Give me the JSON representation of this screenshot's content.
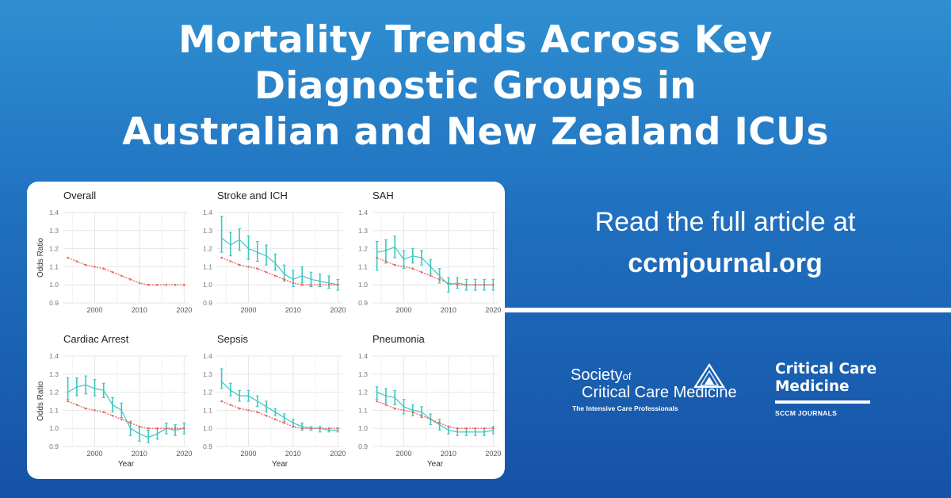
{
  "header": {
    "title_lines": [
      "Mortality Trends Across Key",
      "Diagnostic Groups in",
      "Australian and New Zealand ICUs"
    ]
  },
  "cta": {
    "line1": "Read the full article at",
    "line2": "ccmjournal.org"
  },
  "logos": {
    "sccm_society": "Society",
    "sccm_of": "of",
    "sccm_line2": "Critical Care Medicine",
    "sccm_tagline": "The Intensive Care Professionals",
    "ccm_line1": "Critical Care",
    "ccm_line2": "Medicine",
    "ccm_journals": "SCCM JOURNALS"
  },
  "colors": {
    "background_top": "#2f8fd1",
    "background_bottom": "#1652a6",
    "diagnosis_series": "#3cc7c0",
    "overall_series": "#e8665b"
  },
  "chart_data": [
    {
      "type": "line",
      "title": "Overall",
      "xlabel": "",
      "ylabel": "Odds Ratio",
      "xlim": [
        1993,
        2021
      ],
      "ylim": [
        0.9,
        1.4
      ],
      "xticks": [
        2000,
        2010,
        2020
      ],
      "yticks": [
        0.9,
        1.0,
        1.1,
        1.2,
        1.3,
        1.4
      ],
      "grid": true,
      "reference": {
        "x": [
          1994,
          1996,
          1998,
          2000,
          2002,
          2004,
          2006,
          2008,
          2010,
          2012,
          2014,
          2016,
          2018,
          2020
        ],
        "y": [
          1.15,
          1.13,
          1.11,
          1.1,
          1.09,
          1.07,
          1.05,
          1.03,
          1.01,
          1.0,
          1.0,
          1.0,
          1.0,
          1.0
        ]
      },
      "series": []
    },
    {
      "type": "line",
      "title": "Stroke and ICH",
      "xlabel": "",
      "ylabel": "",
      "xlim": [
        1993,
        2021
      ],
      "ylim": [
        0.9,
        1.4
      ],
      "xticks": [
        2000,
        2010,
        2020
      ],
      "yticks": [
        0.9,
        1.0,
        1.1,
        1.2,
        1.3,
        1.4
      ],
      "grid": true,
      "reference": {
        "x": [
          1994,
          1996,
          1998,
          2000,
          2002,
          2004,
          2006,
          2008,
          2010,
          2012,
          2014,
          2016,
          2018,
          2020
        ],
        "y": [
          1.15,
          1.13,
          1.11,
          1.1,
          1.09,
          1.07,
          1.05,
          1.03,
          1.01,
          1.0,
          1.0,
          1.0,
          1.0,
          1.0
        ]
      },
      "series": [
        {
          "x": [
            1994,
            1996,
            1998,
            2000,
            2002,
            2004,
            2006,
            2008,
            2010,
            2012,
            2014,
            2016,
            2018,
            2020
          ],
          "y": [
            1.26,
            1.22,
            1.25,
            1.2,
            1.18,
            1.16,
            1.12,
            1.06,
            1.03,
            1.05,
            1.03,
            1.02,
            1.01,
            1.0
          ],
          "lo": [
            1.18,
            1.16,
            1.19,
            1.14,
            1.13,
            1.11,
            1.08,
            1.02,
            0.99,
            1.01,
            0.99,
            0.99,
            0.98,
            0.97
          ],
          "hi": [
            1.38,
            1.29,
            1.31,
            1.27,
            1.24,
            1.22,
            1.17,
            1.11,
            1.08,
            1.1,
            1.07,
            1.06,
            1.05,
            1.03
          ]
        }
      ]
    },
    {
      "type": "line",
      "title": "SAH",
      "xlabel": "",
      "ylabel": "",
      "xlim": [
        1993,
        2021
      ],
      "ylim": [
        0.9,
        1.4
      ],
      "xticks": [
        2000,
        2010,
        2020
      ],
      "yticks": [
        0.9,
        1.0,
        1.1,
        1.2,
        1.3,
        1.4
      ],
      "grid": true,
      "reference": {
        "x": [
          1994,
          1996,
          1998,
          2000,
          2002,
          2004,
          2006,
          2008,
          2010,
          2012,
          2014,
          2016,
          2018,
          2020
        ],
        "y": [
          1.15,
          1.13,
          1.11,
          1.1,
          1.09,
          1.07,
          1.05,
          1.03,
          1.01,
          1.0,
          1.0,
          1.0,
          1.0,
          1.0
        ]
      },
      "series": [
        {
          "x": [
            1994,
            1996,
            1998,
            2000,
            2002,
            2004,
            2006,
            2008,
            2010,
            2012,
            2014,
            2016,
            2018,
            2020
          ],
          "y": [
            1.18,
            1.19,
            1.21,
            1.14,
            1.16,
            1.15,
            1.1,
            1.05,
            1.0,
            1.01,
            1.0,
            1.0,
            1.0,
            1.0
          ],
          "lo": [
            1.08,
            1.12,
            1.15,
            1.09,
            1.12,
            1.11,
            1.06,
            1.01,
            0.96,
            0.98,
            0.97,
            0.97,
            0.97,
            0.97
          ],
          "hi": [
            1.24,
            1.25,
            1.27,
            1.19,
            1.2,
            1.19,
            1.14,
            1.09,
            1.04,
            1.04,
            1.03,
            1.03,
            1.03,
            1.03
          ]
        }
      ]
    },
    {
      "type": "line",
      "title": "Cardiac Arrest",
      "xlabel": "Year",
      "ylabel": "Odds Ratio",
      "xlim": [
        1993,
        2021
      ],
      "ylim": [
        0.9,
        1.4
      ],
      "xticks": [
        2000,
        2010,
        2020
      ],
      "yticks": [
        0.9,
        1.0,
        1.1,
        1.2,
        1.3,
        1.4
      ],
      "grid": true,
      "reference": {
        "x": [
          1994,
          1996,
          1998,
          2000,
          2002,
          2004,
          2006,
          2008,
          2010,
          2012,
          2014,
          2016,
          2018,
          2020
        ],
        "y": [
          1.15,
          1.13,
          1.11,
          1.1,
          1.09,
          1.07,
          1.05,
          1.03,
          1.01,
          1.0,
          1.0,
          1.0,
          1.0,
          1.0
        ]
      },
      "series": [
        {
          "x": [
            1994,
            1996,
            1998,
            2000,
            2002,
            2004,
            2006,
            2008,
            2010,
            2012,
            2014,
            2016,
            2018,
            2020
          ],
          "y": [
            1.2,
            1.23,
            1.24,
            1.22,
            1.21,
            1.13,
            1.1,
            1.0,
            0.97,
            0.95,
            0.97,
            1.0,
            0.99,
            1.0
          ],
          "lo": [
            1.16,
            1.18,
            1.19,
            1.18,
            1.17,
            1.09,
            1.06,
            0.96,
            0.93,
            0.92,
            0.94,
            0.97,
            0.96,
            0.97
          ],
          "hi": [
            1.28,
            1.28,
            1.29,
            1.27,
            1.25,
            1.17,
            1.14,
            1.04,
            1.01,
            0.99,
            1.0,
            1.03,
            1.02,
            1.03
          ]
        }
      ]
    },
    {
      "type": "line",
      "title": "Sepsis",
      "xlabel": "Year",
      "ylabel": "",
      "xlim": [
        1993,
        2021
      ],
      "ylim": [
        0.9,
        1.4
      ],
      "xticks": [
        2000,
        2010,
        2020
      ],
      "yticks": [
        0.9,
        1.0,
        1.1,
        1.2,
        1.3,
        1.4
      ],
      "grid": true,
      "reference": {
        "x": [
          1994,
          1996,
          1998,
          2000,
          2002,
          2004,
          2006,
          2008,
          2010,
          2012,
          2014,
          2016,
          2018,
          2020
        ],
        "y": [
          1.15,
          1.13,
          1.11,
          1.1,
          1.09,
          1.07,
          1.05,
          1.03,
          1.01,
          1.0,
          1.0,
          1.0,
          1.0,
          1.0
        ]
      },
      "series": [
        {
          "x": [
            1994,
            1996,
            1998,
            2000,
            2002,
            2004,
            2006,
            2008,
            2010,
            2012,
            2014,
            2016,
            2018,
            2020
          ],
          "y": [
            1.26,
            1.21,
            1.18,
            1.18,
            1.15,
            1.12,
            1.09,
            1.06,
            1.03,
            1.01,
            1.0,
            1.0,
            0.99,
            0.99
          ],
          "lo": [
            1.22,
            1.18,
            1.15,
            1.15,
            1.12,
            1.09,
            1.07,
            1.04,
            1.01,
            0.99,
            0.99,
            0.98,
            0.98,
            0.98
          ],
          "hi": [
            1.33,
            1.25,
            1.21,
            1.21,
            1.18,
            1.15,
            1.11,
            1.08,
            1.05,
            1.03,
            1.01,
            1.01,
            1.0,
            1.0
          ]
        }
      ]
    },
    {
      "type": "line",
      "title": "Pneumonia",
      "xlabel": "Year",
      "ylabel": "",
      "xlim": [
        1993,
        2021
      ],
      "ylim": [
        0.9,
        1.4
      ],
      "xticks": [
        2000,
        2010,
        2020
      ],
      "yticks": [
        0.9,
        1.0,
        1.1,
        1.2,
        1.3,
        1.4
      ],
      "grid": true,
      "reference": {
        "x": [
          1994,
          1996,
          1998,
          2000,
          2002,
          2004,
          2006,
          2008,
          2010,
          2012,
          2014,
          2016,
          2018,
          2020
        ],
        "y": [
          1.15,
          1.13,
          1.11,
          1.1,
          1.09,
          1.07,
          1.05,
          1.03,
          1.01,
          1.0,
          1.0,
          1.0,
          1.0,
          1.0
        ]
      },
      "series": [
        {
          "x": [
            1994,
            1996,
            1998,
            2000,
            2002,
            2004,
            2006,
            2008,
            2010,
            2012,
            2014,
            2016,
            2018,
            2020
          ],
          "y": [
            1.2,
            1.18,
            1.17,
            1.12,
            1.1,
            1.09,
            1.05,
            1.02,
            0.99,
            0.98,
            0.98,
            0.98,
            0.98,
            0.99
          ],
          "lo": [
            1.16,
            1.14,
            1.13,
            1.08,
            1.07,
            1.06,
            1.02,
            0.99,
            0.97,
            0.96,
            0.96,
            0.96,
            0.96,
            0.97
          ],
          "hi": [
            1.23,
            1.22,
            1.21,
            1.16,
            1.13,
            1.12,
            1.08,
            1.05,
            1.01,
            1.0,
            1.0,
            1.0,
            1.0,
            1.01
          ]
        }
      ]
    }
  ]
}
